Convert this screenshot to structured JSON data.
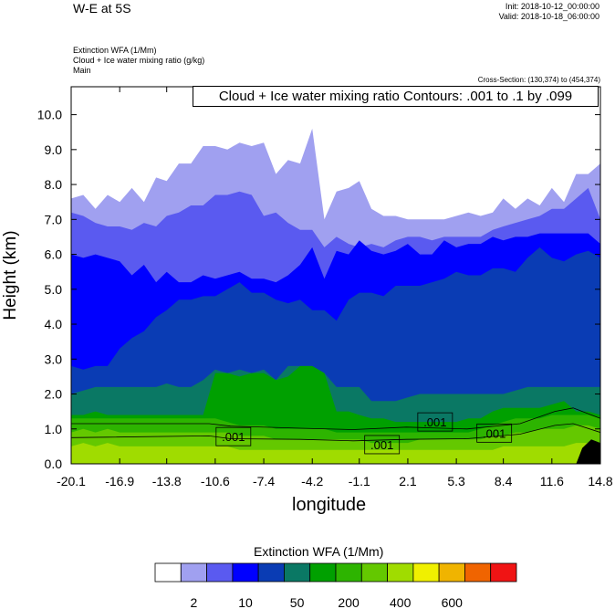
{
  "header": {
    "title": "W-E at 5S",
    "init": "Init: 2018-10-12_00:00:00",
    "valid": "Valid: 2018-10-18_06:00:00",
    "field1": "Extinction WFA   (1/Mm)",
    "field2": "Cloud + Ice water mixing ratio   (g/kg)",
    "field3": "Main",
    "cross_section": "Cross-Section: (130,374) to (454,374)"
  },
  "chart_data": {
    "type": "heatmap",
    "title": "Cloud + Ice water mixing ratio Contours: .001 to .1 by .099",
    "xlabel": "longitude",
    "ylabel": "Height (km)",
    "xlim": [
      -20.1,
      14.8
    ],
    "ylim": [
      0.0,
      10.8
    ],
    "x_ticks": [
      "-20.1",
      "-16.9",
      "-13.8",
      "-10.6",
      "-7.4",
      "-4.2",
      "-1.1",
      "2.1",
      "5.3",
      "8.4",
      "11.6",
      "14.8"
    ],
    "y_ticks": [
      "0.0",
      "1.0",
      "2.0",
      "3.0",
      "4.0",
      "5.0",
      "6.0",
      "7.0",
      "8.0",
      "9.0",
      "10.0"
    ],
    "contour_labels": [
      {
        "text": ".001",
        "x": -9.4,
        "y": 0.78
      },
      {
        "text": ".001",
        "x": 0.4,
        "y": 0.55
      },
      {
        "text": ".001",
        "x": 3.9,
        "y": 1.2
      },
      {
        "text": ".001",
        "x": 7.8,
        "y": 0.88
      }
    ],
    "level_tops": {
      "x": [
        -20.1,
        -19.3,
        -18.5,
        -17.7,
        -16.9,
        -16.1,
        -15.3,
        -14.5,
        -13.8,
        -13.0,
        -12.2,
        -11.4,
        -10.6,
        -9.8,
        -9.0,
        -8.2,
        -7.4,
        -6.6,
        -5.8,
        -5.0,
        -4.2,
        -3.4,
        -2.6,
        -1.8,
        -1.1,
        -0.3,
        0.5,
        1.3,
        2.1,
        2.9,
        3.7,
        4.5,
        5.3,
        6.1,
        6.9,
        7.7,
        8.4,
        9.2,
        10.0,
        10.8,
        11.6,
        12.4,
        13.2,
        14.0,
        14.8
      ],
      "band1": [
        7.6,
        7.7,
        7.3,
        7.7,
        7.5,
        7.9,
        7.5,
        8.2,
        8.1,
        8.6,
        8.6,
        9.1,
        9.1,
        9.0,
        9.2,
        9.1,
        9.2,
        8.3,
        8.7,
        8.6,
        9.6,
        7.0,
        7.8,
        7.9,
        8.1,
        7.3,
        7.1,
        7.1,
        7.0,
        7.0,
        7.0,
        7.0,
        7.1,
        7.2,
        7.1,
        7.2,
        7.6,
        7.3,
        7.6,
        7.4,
        7.9,
        7.5,
        8.3,
        8.3,
        8.6
      ],
      "band2": [
        7.2,
        7.1,
        6.9,
        6.8,
        6.8,
        6.7,
        6.9,
        6.8,
        7.1,
        7.2,
        7.4,
        7.4,
        7.7,
        7.7,
        7.8,
        7.7,
        7.1,
        7.2,
        6.9,
        6.7,
        6.7,
        6.2,
        6.5,
        6.3,
        6.2,
        6.3,
        6.2,
        6.4,
        6.5,
        6.5,
        6.4,
        6.5,
        6.5,
        6.5,
        6.5,
        6.7,
        6.8,
        6.9,
        7.0,
        7.1,
        7.3,
        7.3,
        7.6,
        7.9,
        7.0
      ],
      "band3": [
        6.0,
        5.9,
        6.0,
        5.9,
        5.8,
        5.4,
        5.7,
        5.2,
        5.5,
        5.2,
        5.2,
        5.4,
        5.3,
        5.4,
        5.5,
        5.3,
        5.3,
        5.2,
        5.4,
        5.7,
        6.2,
        5.3,
        6.1,
        6.0,
        6.4,
        6.1,
        6.0,
        6.1,
        6.3,
        6.0,
        6.0,
        6.4,
        6.2,
        6.3,
        6.3,
        6.5,
        6.4,
        6.5,
        6.5,
        6.6,
        6.6,
        6.6,
        6.6,
        6.6,
        6.3
      ],
      "band4": [
        2.8,
        2.7,
        2.8,
        2.8,
        3.3,
        3.6,
        3.8,
        4.2,
        4.4,
        4.7,
        4.7,
        4.8,
        4.8,
        5.0,
        5.2,
        4.9,
        4.9,
        4.7,
        4.6,
        4.7,
        4.4,
        4.4,
        4.1,
        4.7,
        4.9,
        4.9,
        4.8,
        5.1,
        5.1,
        5.1,
        5.2,
        5.3,
        5.5,
        5.4,
        5.4,
        5.6,
        5.6,
        5.5,
        5.9,
        6.2,
        5.9,
        5.8,
        6.0,
        6.1,
        5.9
      ],
      "band5": [
        2.0,
        2.1,
        2.2,
        2.2,
        2.2,
        2.2,
        2.2,
        2.2,
        2.3,
        2.2,
        2.2,
        2.4,
        2.7,
        2.6,
        2.7,
        2.6,
        2.7,
        2.4,
        2.8,
        2.8,
        2.8,
        2.6,
        2.2,
        2.2,
        2.2,
        1.8,
        1.8,
        1.8,
        1.9,
        2.0,
        2.0,
        2.0,
        2.0,
        2.0,
        2.0,
        2.0,
        2.0,
        2.1,
        2.2,
        2.2,
        2.2,
        2.2,
        2.2,
        2.2,
        2.2
      ],
      "band6": [
        1.4,
        1.4,
        1.5,
        1.4,
        1.4,
        1.4,
        1.4,
        1.4,
        1.4,
        1.4,
        1.4,
        1.4,
        2.6,
        2.6,
        2.5,
        2.6,
        2.6,
        2.4,
        2.5,
        2.8,
        2.8,
        2.6,
        1.5,
        1.5,
        1.4,
        1.3,
        1.3,
        1.2,
        1.2,
        1.2,
        1.2,
        1.2,
        1.2,
        1.3,
        1.3,
        1.5,
        1.6,
        1.6,
        1.6,
        1.6,
        1.7,
        1.8,
        1.5,
        1.5,
        1.4
      ],
      "band7": [
        1.3,
        1.3,
        1.3,
        1.3,
        1.3,
        1.3,
        1.3,
        1.3,
        1.3,
        1.3,
        1.3,
        1.3,
        1.3,
        1.2,
        1.1,
        1.1,
        1.1,
        1.0,
        1.0,
        1.0,
        1.0,
        1.0,
        0.9,
        0.9,
        0.9,
        0.9,
        0.9,
        0.9,
        0.9,
        0.9,
        0.9,
        0.9,
        0.9,
        0.9,
        1.0,
        1.1,
        1.2,
        1.3,
        1.3,
        1.3,
        1.4,
        1.4,
        1.4,
        1.4,
        1.3
      ],
      "band8": [
        0.9,
        1.0,
        0.9,
        1.0,
        0.9,
        0.9,
        0.9,
        0.9,
        0.9,
        0.9,
        0.9,
        0.9,
        0.9,
        0.9,
        0.8,
        0.8,
        0.8,
        0.7,
        0.7,
        0.7,
        0.7,
        0.7,
        0.7,
        0.7,
        0.7,
        0.6,
        0.6,
        0.6,
        0.6,
        0.7,
        0.7,
        0.7,
        0.7,
        0.7,
        0.7,
        0.8,
        0.8,
        0.9,
        0.9,
        1.0,
        1.0,
        1.0,
        1.1,
        1.1,
        1.0
      ],
      "band9": [
        0.5,
        0.6,
        0.5,
        0.6,
        0.5,
        0.5,
        0.5,
        0.5,
        0.5,
        0.5,
        0.5,
        0.5,
        0.5,
        0.5,
        0.4,
        0.4,
        0.4,
        0.4,
        0.4,
        0.4,
        0.4,
        0.4,
        0.4,
        0.4,
        0.4,
        0.4,
        0.4,
        0.4,
        0.4,
        0.4,
        0.4,
        0.4,
        0.4,
        0.4,
        0.4,
        0.4,
        0.5,
        0.5,
        0.5,
        0.5,
        0.5,
        0.5,
        0.6,
        0.6,
        0.6
      ]
    },
    "colorbar": {
      "title": "Extinction WFA  (1/Mm)",
      "colors": [
        "#ffffff",
        "#a0a0f0",
        "#5a5af0",
        "#0000ff",
        "#0a3cb4",
        "#0a7864",
        "#00a000",
        "#2db400",
        "#64c800",
        "#a0dc00",
        "#f0f000",
        "#f0b400",
        "#f06400",
        "#f01414"
      ],
      "labels": [
        "2",
        "10",
        "50",
        "200",
        "400",
        "600"
      ]
    }
  }
}
